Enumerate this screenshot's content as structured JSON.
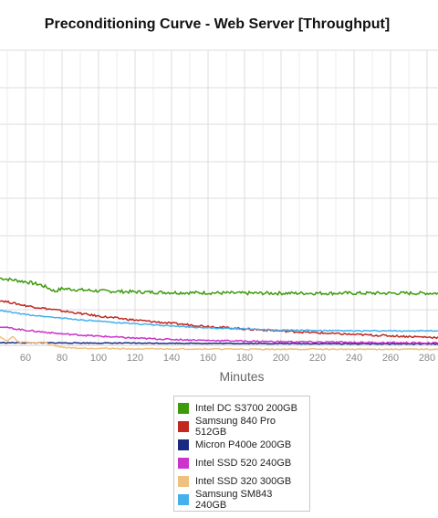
{
  "chart_data": {
    "type": "line",
    "title": "Preconditioning Curve - Web Server [Throughput]",
    "xlabel": "Minutes",
    "ylabel": "",
    "xlim": [
      46,
      286
    ],
    "ylim": [
      0,
      90
    ],
    "x_ticks": [
      60,
      80,
      100,
      120,
      140,
      160,
      180,
      200,
      220,
      240,
      260,
      280
    ],
    "x_tick_labels": [
      "60",
      "80",
      "100",
      "120",
      "140",
      "160",
      "180",
      "200",
      "220",
      "240",
      "260",
      "280"
    ],
    "grid": true,
    "legend_position": "bottom",
    "series": [
      {
        "name": "Intel DC S3700 200GB",
        "color": "#3d9a0d",
        "x": [
          46,
          60,
          68,
          72,
          76,
          80,
          90,
          100,
          120,
          140,
          160,
          180,
          200,
          220,
          240,
          260,
          286
        ],
        "y": [
          20.5,
          19.4,
          18.5,
          17.6,
          16.5,
          17.3,
          16.9,
          16.6,
          16.3,
          16.1,
          16.0,
          15.9,
          15.9,
          15.9,
          15.9,
          15.9,
          15.9
        ]
      },
      {
        "name": "Samsung 840 Pro 512GB",
        "color": "#c02820",
        "x": [
          46,
          60,
          80,
          100,
          120,
          140,
          160,
          180,
          200,
          220,
          240,
          260,
          280,
          286
        ],
        "y": [
          13.7,
          12.1,
          10.5,
          8.9,
          7.7,
          6.7,
          5.8,
          5.0,
          4.4,
          3.8,
          3.3,
          2.9,
          2.5,
          2.4
        ]
      },
      {
        "name": "Micron P400e 200GB",
        "color": "#1a2a80",
        "x": [
          46,
          100,
          160,
          220,
          286
        ],
        "y": [
          0.8,
          0.7,
          0.6,
          0.5,
          0.4
        ]
      },
      {
        "name": "Intel SSD 520 240GB",
        "color": "#cc33cc",
        "x": [
          46,
          60,
          80,
          100,
          120,
          140,
          160,
          180,
          200,
          220,
          240,
          260,
          286
        ],
        "y": [
          5.7,
          4.6,
          3.5,
          2.8,
          2.2,
          1.8,
          1.5,
          1.3,
          1.1,
          1.0,
          0.9,
          0.8,
          0.7
        ]
      },
      {
        "name": "Intel SSD 320 300GB",
        "color": "#f0c080",
        "x": [
          46,
          50,
          53,
          56,
          60,
          65,
          70,
          73,
          76,
          80,
          90,
          100,
          120,
          140,
          160,
          180,
          200,
          220,
          240,
          260,
          286
        ],
        "y": [
          2.7,
          1.2,
          2.8,
          0.9,
          1.0,
          0.8,
          1.0,
          0.3,
          -0.1,
          -0.6,
          -0.9,
          -0.9,
          -1.1,
          -1.1,
          -1.1,
          -1.2,
          -1.2,
          -1.2,
          -1.2,
          -1.2,
          -1.2
        ]
      },
      {
        "name": "Samsung SM843 240GB",
        "color": "#44b0ee",
        "x": [
          46,
          60,
          80,
          100,
          120,
          140,
          160,
          180,
          200,
          220,
          240,
          260,
          286
        ],
        "y": [
          10.6,
          9.4,
          8.3,
          7.3,
          6.6,
          5.9,
          5.3,
          5.0,
          4.7,
          4.5,
          4.4,
          4.4,
          4.4
        ]
      }
    ]
  }
}
